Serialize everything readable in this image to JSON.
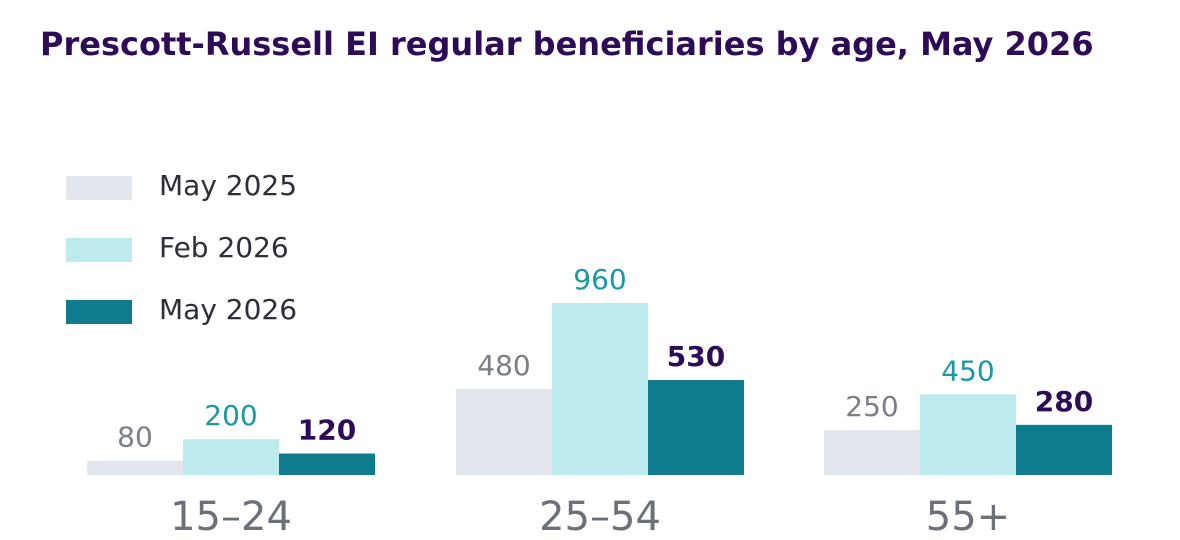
{
  "chart_data": {
    "type": "bar",
    "title": "Prescott-Russell EI regular beneficiaries by age, May 2026",
    "categories": [
      "15–24",
      "25–54",
      "55+"
    ],
    "series": [
      {
        "name": "May 2025",
        "values": [
          80,
          480,
          250
        ],
        "color": "#e2e7ee",
        "label_color": "#7a7f88",
        "label_weight": "normal"
      },
      {
        "name": "Feb 2026",
        "values": [
          200,
          960,
          450
        ],
        "color": "#bdeaec",
        "label_color": "#1a98a6",
        "label_weight": "normal"
      },
      {
        "name": "May 2026",
        "values": [
          120,
          530,
          280
        ],
        "color": "#0e7c8c",
        "label_color": "#2e0b57",
        "label_weight": "bold"
      }
    ],
    "ylim": [
      0,
      960
    ],
    "grid": false,
    "legend_position": "left"
  },
  "colors": {
    "title": "#2e0b57",
    "category_label": "#6b7079"
  }
}
